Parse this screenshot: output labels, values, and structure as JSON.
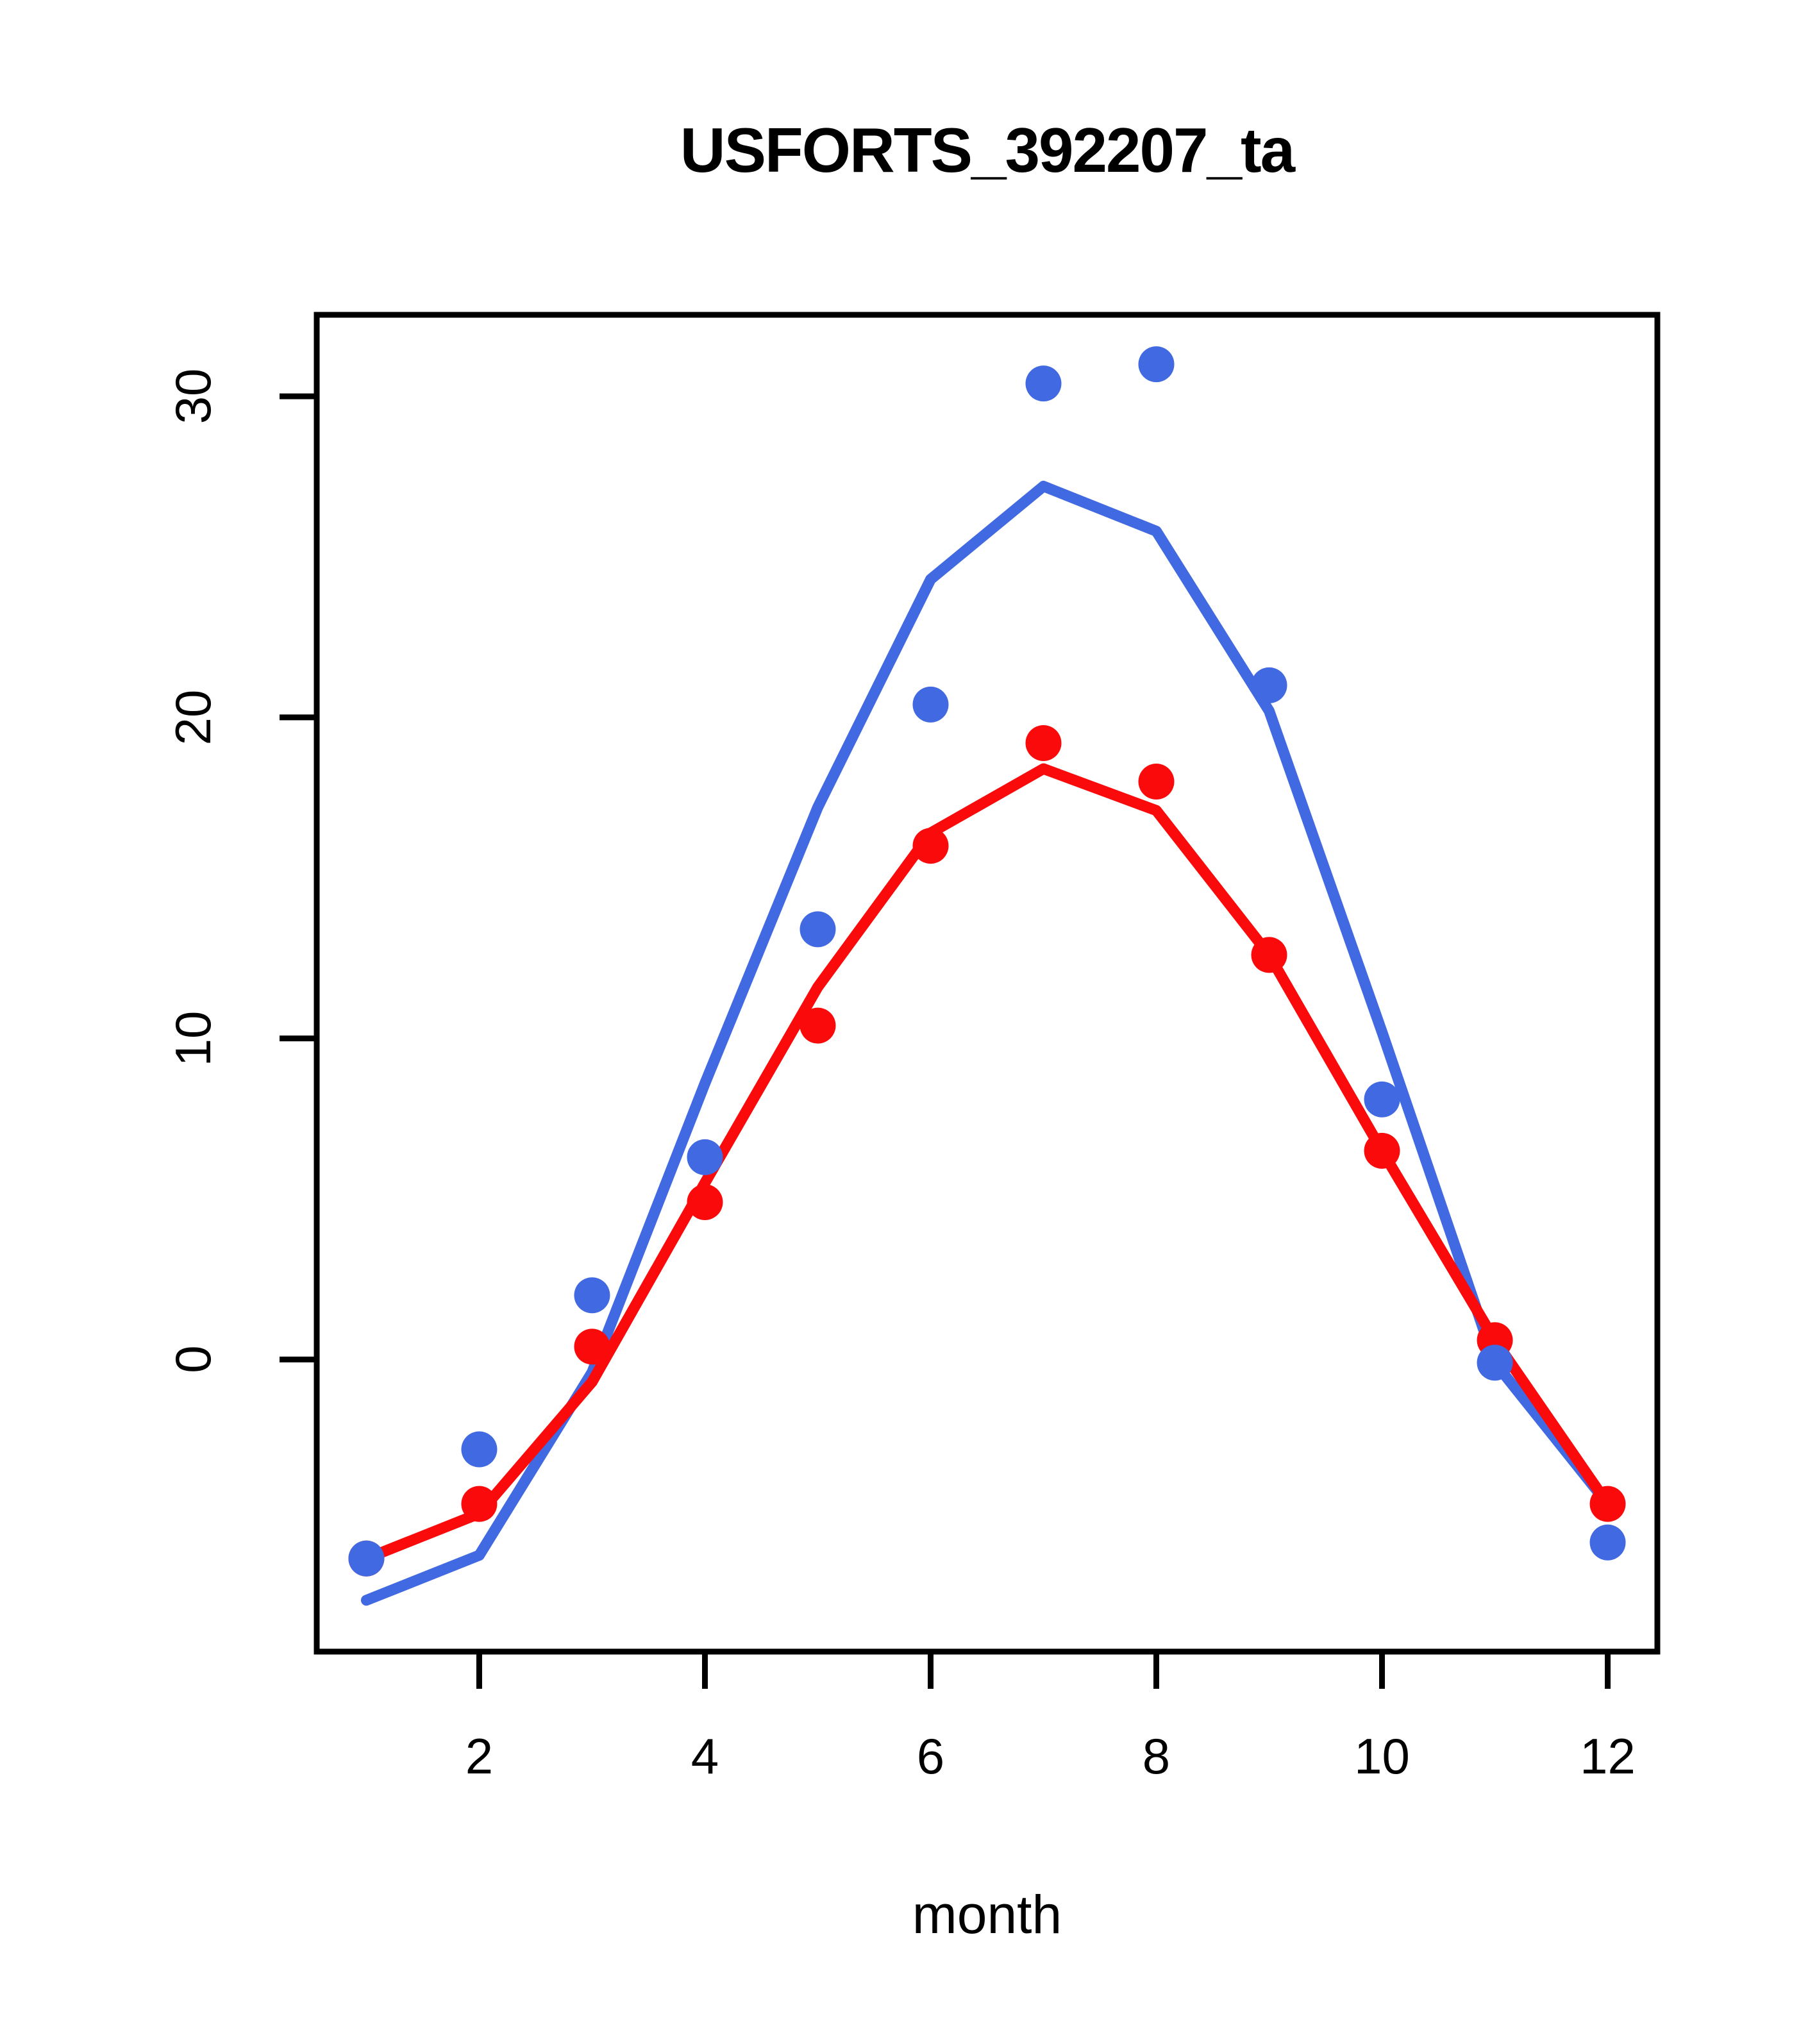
{
  "title": "USFORTS_392207_ta",
  "chart_data": {
    "type": "line",
    "title": "USFORTS_392207_ta",
    "xlabel": "month",
    "ylabel": "",
    "x": [
      1,
      2,
      3,
      4,
      5,
      6,
      7,
      8,
      9,
      10,
      11,
      12
    ],
    "xlim": [
      0.56,
      12.44
    ],
    "ylim": [
      -9.1,
      32.54
    ],
    "xticks": [
      2,
      4,
      6,
      8,
      10,
      12
    ],
    "yticks": [
      0,
      10,
      20,
      30
    ],
    "grid": false,
    "legend_position": "none",
    "colors": {
      "blue": "#4169e1",
      "red": "#fa0a0a",
      "axis": "#000000",
      "background": "#ffffff"
    },
    "series": [
      {
        "name": "blue-line",
        "render": "line",
        "color": "#4169e1",
        "values": [
          -7.5,
          -6.1,
          -0.4,
          8.6,
          17.2,
          24.3,
          27.2,
          25.8,
          20.2,
          10.2,
          -0.1,
          -4.5
        ]
      },
      {
        "name": "red-line",
        "render": "line",
        "color": "#fa0a0a",
        "values": [
          -6.2,
          -4.8,
          -0.7,
          5.5,
          11.6,
          16.4,
          18.4,
          17.1,
          12.6,
          6.5,
          0.6,
          -4.5
        ]
      },
      {
        "name": "red-points",
        "render": "scatter",
        "color": "#fa0a0a",
        "values": [
          -6.2,
          -4.5,
          0.4,
          4.9,
          10.4,
          16.0,
          19.2,
          18.0,
          12.6,
          6.5,
          0.6,
          -4.5
        ]
      },
      {
        "name": "blue-points",
        "render": "scatter",
        "color": "#4169e1",
        "values": [
          -6.2,
          -2.8,
          2.0,
          6.3,
          13.4,
          20.4,
          30.4,
          31.0,
          21.0,
          8.1,
          -0.1,
          -5.7
        ]
      }
    ]
  }
}
